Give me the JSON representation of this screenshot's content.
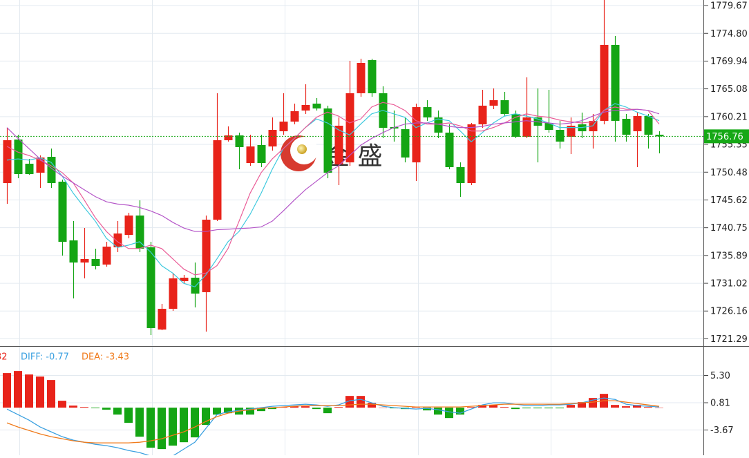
{
  "chart_data": [
    {
      "type": "candlestick",
      "up_color": "#e8231a",
      "down_color": "#14a514",
      "open": [
        1748.57,
        1756.2,
        1751.96,
        1750.39,
        1753.17,
        1748.82,
        1738.53,
        1734.66,
        1735.27,
        1734.3,
        1737.32,
        1739.5,
        1742.89,
        1737.32,
        1722.92,
        1726.55,
        1731.39,
        1732.0,
        1729.46,
        1742.16,
        1756.08,
        1756.92,
        1752.08,
        1755.23,
        1754.99,
        1757.65,
        1759.34,
        1761.28,
        1762.49,
        1761.64,
        1751.84,
        1752.2,
        1764.31,
        1770.11,
        1764.31,
        1758.38,
        1758.01,
        1752.2,
        1761.88,
        1760.07,
        1757.41,
        1751.36,
        1748.57,
        1758.86,
        1762.13,
        1763.09,
        1760.68,
        1756.68,
        1760.07,
        1759.1,
        1757.89,
        1756.68,
        1758.86,
        1757.65,
        1759.47,
        1772.78,
        1759.83,
        1757.65,
        1760.31,
        1757.04
      ],
      "high": [
        1758.25,
        1757.04,
        1752.81,
        1753.42,
        1754.62,
        1749.18,
        1741.92,
        1740.71,
        1737.08,
        1738.29,
        1741.92,
        1743.37,
        1745.55,
        1738.29,
        1727.4,
        1732.84,
        1732.48,
        1734.66,
        1742.89,
        1764.31,
        1758.5,
        1757.41,
        1757.04,
        1757.04,
        1760.07,
        1764.31,
        1762.49,
        1765.88,
        1763.46,
        1762.13,
        1760.07,
        1769.99,
        1770.36,
        1770.36,
        1765.52,
        1761.28,
        1760.07,
        1762.49,
        1763.09,
        1761.28,
        1758.86,
        1752.2,
        1759.1,
        1764.91,
        1765.15,
        1764.55,
        1761.28,
        1767.09,
        1765.15,
        1764.91,
        1759.47,
        1760.07,
        1760.92,
        1760.68,
        1781.0,
        1774.35,
        1760.68,
        1761.04,
        1760.68,
        1757.65
      ],
      "low": [
        1744.94,
        1749.42,
        1750.03,
        1747.73,
        1747.73,
        1735.87,
        1728.37,
        1731.88,
        1733.45,
        1733.93,
        1736.48,
        1738.9,
        1736.48,
        1721.95,
        1722.8,
        1726.19,
        1731.03,
        1726.79,
        1722.56,
        1741.92,
        1755.84,
        1750.99,
        1751.6,
        1751.36,
        1754.26,
        1757.04,
        1758.86,
        1760.68,
        1761.28,
        1749.42,
        1748.21,
        1751.6,
        1763.7,
        1763.7,
        1756.44,
        1755.84,
        1752.2,
        1748.94,
        1759.47,
        1756.44,
        1750.99,
        1746.16,
        1748.21,
        1758.25,
        1761.52,
        1760.31,
        1756.44,
        1756.44,
        1752.2,
        1757.41,
        1754.62,
        1753.66,
        1756.44,
        1754.62,
        1758.86,
        1755.84,
        1755.84,
        1751.36,
        1754.62,
        1753.78
      ],
      "close": [
        1756.08,
        1750.15,
        1750.15,
        1753.05,
        1748.57,
        1738.29,
        1734.66,
        1735.27,
        1734.06,
        1737.44,
        1739.74,
        1742.89,
        1737.08,
        1723.17,
        1726.55,
        1731.88,
        1732.0,
        1729.22,
        1742.16,
        1756.08,
        1756.92,
        1754.87,
        1754.99,
        1752.08,
        1757.89,
        1759.34,
        1761.16,
        1762.25,
        1761.64,
        1750.39,
        1758.62,
        1764.31,
        1769.63,
        1764.31,
        1758.25,
        1758.13,
        1753.05,
        1761.88,
        1760.07,
        1757.41,
        1751.36,
        1748.57,
        1758.86,
        1762.13,
        1763.09,
        1760.68,
        1756.68,
        1760.07,
        1758.62,
        1757.89,
        1755.84,
        1758.62,
        1757.65,
        1759.47,
        1772.78,
        1759.47,
        1757.04,
        1760.31,
        1757.04,
        1756.76
      ],
      "series": [
        {
          "color": "#3ec9de",
          "values": [
            1752.6,
            1752.8,
            1752.6,
            1753.0,
            1752.2,
            1749.8,
            1746.8,
            1744.3,
            1741.9,
            1738.9,
            1737.3,
            1737.7,
            1738.3,
            1736.5,
            1734.1,
            1732.8,
            1731.0,
            1730.4,
            1732.5,
            1735.3,
            1738.3,
            1740.1,
            1743.1,
            1746.8,
            1751.0,
            1754.6,
            1756.4,
            1758.3,
            1759.8,
            1759.1,
            1757.9,
            1757.0,
            1758.9,
            1760.7,
            1761.3,
            1760.7,
            1760.1,
            1758.3,
            1759.1,
            1759.8,
            1759.5,
            1757.7,
            1755.8,
            1757.4,
            1759.1,
            1760.3,
            1760.7,
            1760.3,
            1759.8,
            1759.1,
            1758.3,
            1758.3,
            1758.3,
            1758.6,
            1761.3,
            1762.5,
            1761.9,
            1761.0,
            1760.3,
            1759.5
          ]
        },
        {
          "color": "#ea5c97",
          "values": [
            1755.0,
            1754.0,
            1753.4,
            1752.6,
            1751.6,
            1750.4,
            1748.6,
            1745.6,
            1742.5,
            1740.1,
            1738.3,
            1737.1,
            1737.1,
            1737.7,
            1737.1,
            1735.3,
            1733.5,
            1732.5,
            1732.8,
            1734.1,
            1737.1,
            1741.9,
            1746.8,
            1750.4,
            1752.8,
            1754.6,
            1756.4,
            1758.3,
            1760.1,
            1761.0,
            1760.3,
            1759.1,
            1759.8,
            1761.9,
            1762.7,
            1762.3,
            1761.3,
            1759.5,
            1758.9,
            1758.9,
            1759.1,
            1758.6,
            1757.7,
            1757.7,
            1758.3,
            1759.1,
            1760.1,
            1760.7,
            1760.3,
            1760.1,
            1759.6,
            1759.3,
            1759.1,
            1759.3,
            1761.3,
            1761.9,
            1761.5,
            1761.5,
            1761.3,
            1758.9
          ]
        },
        {
          "color": "#b455c8",
          "values": [
            1758.3,
            1756.4,
            1754.6,
            1752.8,
            1751.2,
            1749.8,
            1748.6,
            1747.4,
            1746.2,
            1745.3,
            1744.9,
            1744.7,
            1744.3,
            1743.7,
            1742.9,
            1741.7,
            1740.7,
            1740.1,
            1740.1,
            1740.4,
            1740.5,
            1740.6,
            1740.7,
            1740.9,
            1741.9,
            1743.7,
            1745.6,
            1747.4,
            1748.9,
            1750.4,
            1751.6,
            1753.4,
            1755.2,
            1756.4,
            1757.4,
            1758.3,
            1758.9,
            1759.1,
            1759.1,
            1758.9,
            1758.5,
            1758.3,
            1758.3,
            1758.5,
            1758.9,
            1759.1,
            1759.3,
            1759.5,
            1759.3,
            1759.1,
            1758.9,
            1759.1,
            1759.5,
            1760.3,
            1761.0,
            1761.3,
            1761.3,
            1761.5,
            1761.3,
            1760.7
          ]
        }
      ],
      "ylim": [
        1720.14,
        1780.64
      ],
      "yticks": [
        1779.67,
        {
          "value": 1774.8,
          "label": "1774.80"
        },
        1769.94,
        1765.08,
        1760.21,
        1755.35,
        1750.48,
        1745.62,
        1740.75,
        1735.89,
        1731.02,
        1726.16,
        1721.29
      ],
      "last_price": 1756.76,
      "last_price_color": "#16a816",
      "grid": true,
      "watermark": "金 盛"
    },
    {
      "type": "macd",
      "histogram_label": "32",
      "histogram_label_color": "#e8231a",
      "values": [
        5.69,
        6.03,
        5.46,
        5.12,
        4.55,
        1.14,
        0.34,
        0.11,
        -0.1,
        -0.34,
        -1.14,
        -2.5,
        -4.78,
        -6.59,
        -6.82,
        -6.25,
        -5.69,
        -4.89,
        -2.84,
        -1.14,
        -0.91,
        -1.14,
        -1.14,
        -0.57,
        -0.23,
        0.11,
        0.23,
        0.23,
        -0.23,
        -0.91,
        0.11,
        1.93,
        1.93,
        0.8,
        0,
        -0.11,
        -0.23,
        0.11,
        -0.45,
        -1.14,
        -1.71,
        -1.14,
        0.11,
        0.45,
        0.45,
        0.11,
        -0.23,
        -0.11,
        -0.11,
        -0.11,
        -0.11,
        0.45,
        0.91,
        1.59,
        2.27,
        0.45,
        0.23,
        0.45,
        0.11,
        0
      ],
      "series": [
        {
          "name": "DIFF: -0.77",
          "color": "#3aa0e0",
          "values": [
            -0.23,
            -1.14,
            -2.05,
            -3.18,
            -3.98,
            -4.78,
            -5.34,
            -5.69,
            -6.03,
            -6.25,
            -6.59,
            -7.05,
            -7.39,
            -7.96,
            -8.53,
            -7.96,
            -6.82,
            -5.69,
            -3.41,
            -1.14,
            -0.68,
            -0.45,
            -0.23,
            0,
            0.23,
            0.34,
            0.45,
            0.57,
            0.45,
            0.23,
            0.45,
            1.14,
            1.36,
            0.8,
            0.23,
            0,
            -0.11,
            -0.23,
            -0.11,
            -0.34,
            -0.68,
            -0.91,
            -0.23,
            0.45,
            0.8,
            0.8,
            0.57,
            0.34,
            0.34,
            0.45,
            0.45,
            0.57,
            0.8,
            1.25,
            1.59,
            1.36,
            0.57,
            0.34,
            0.23,
            0.11
          ]
        },
        {
          "name": "DEA: -3.43",
          "color": "#f07a1a",
          "values": [
            -2.5,
            -3.18,
            -3.75,
            -4.32,
            -4.78,
            -5.12,
            -5.46,
            -5.69,
            -5.8,
            -5.8,
            -5.8,
            -5.8,
            -5.69,
            -5.46,
            -5.12,
            -4.55,
            -3.98,
            -3.18,
            -2.27,
            -1.48,
            -0.91,
            -0.57,
            -0.34,
            -0.11,
            0,
            0.11,
            0.23,
            0.34,
            0.34,
            0.34,
            0.34,
            0.45,
            0.57,
            0.57,
            0.45,
            0.34,
            0.23,
            0.11,
            0.11,
            0.11,
            0.11,
            0.11,
            0.23,
            0.34,
            0.45,
            0.57,
            0.57,
            0.57,
            0.57,
            0.57,
            0.57,
            0.68,
            0.8,
            0.91,
            1.14,
            1.14,
            0.91,
            0.68,
            0.45,
            0.23
          ]
        }
      ],
      "ylim": [
        -7.83,
        10.02
      ],
      "yticks": [
        {
          "value": 5.3,
          "label": "5.30"
        },
        0.81,
        -3.67
      ],
      "grid": true
    }
  ]
}
